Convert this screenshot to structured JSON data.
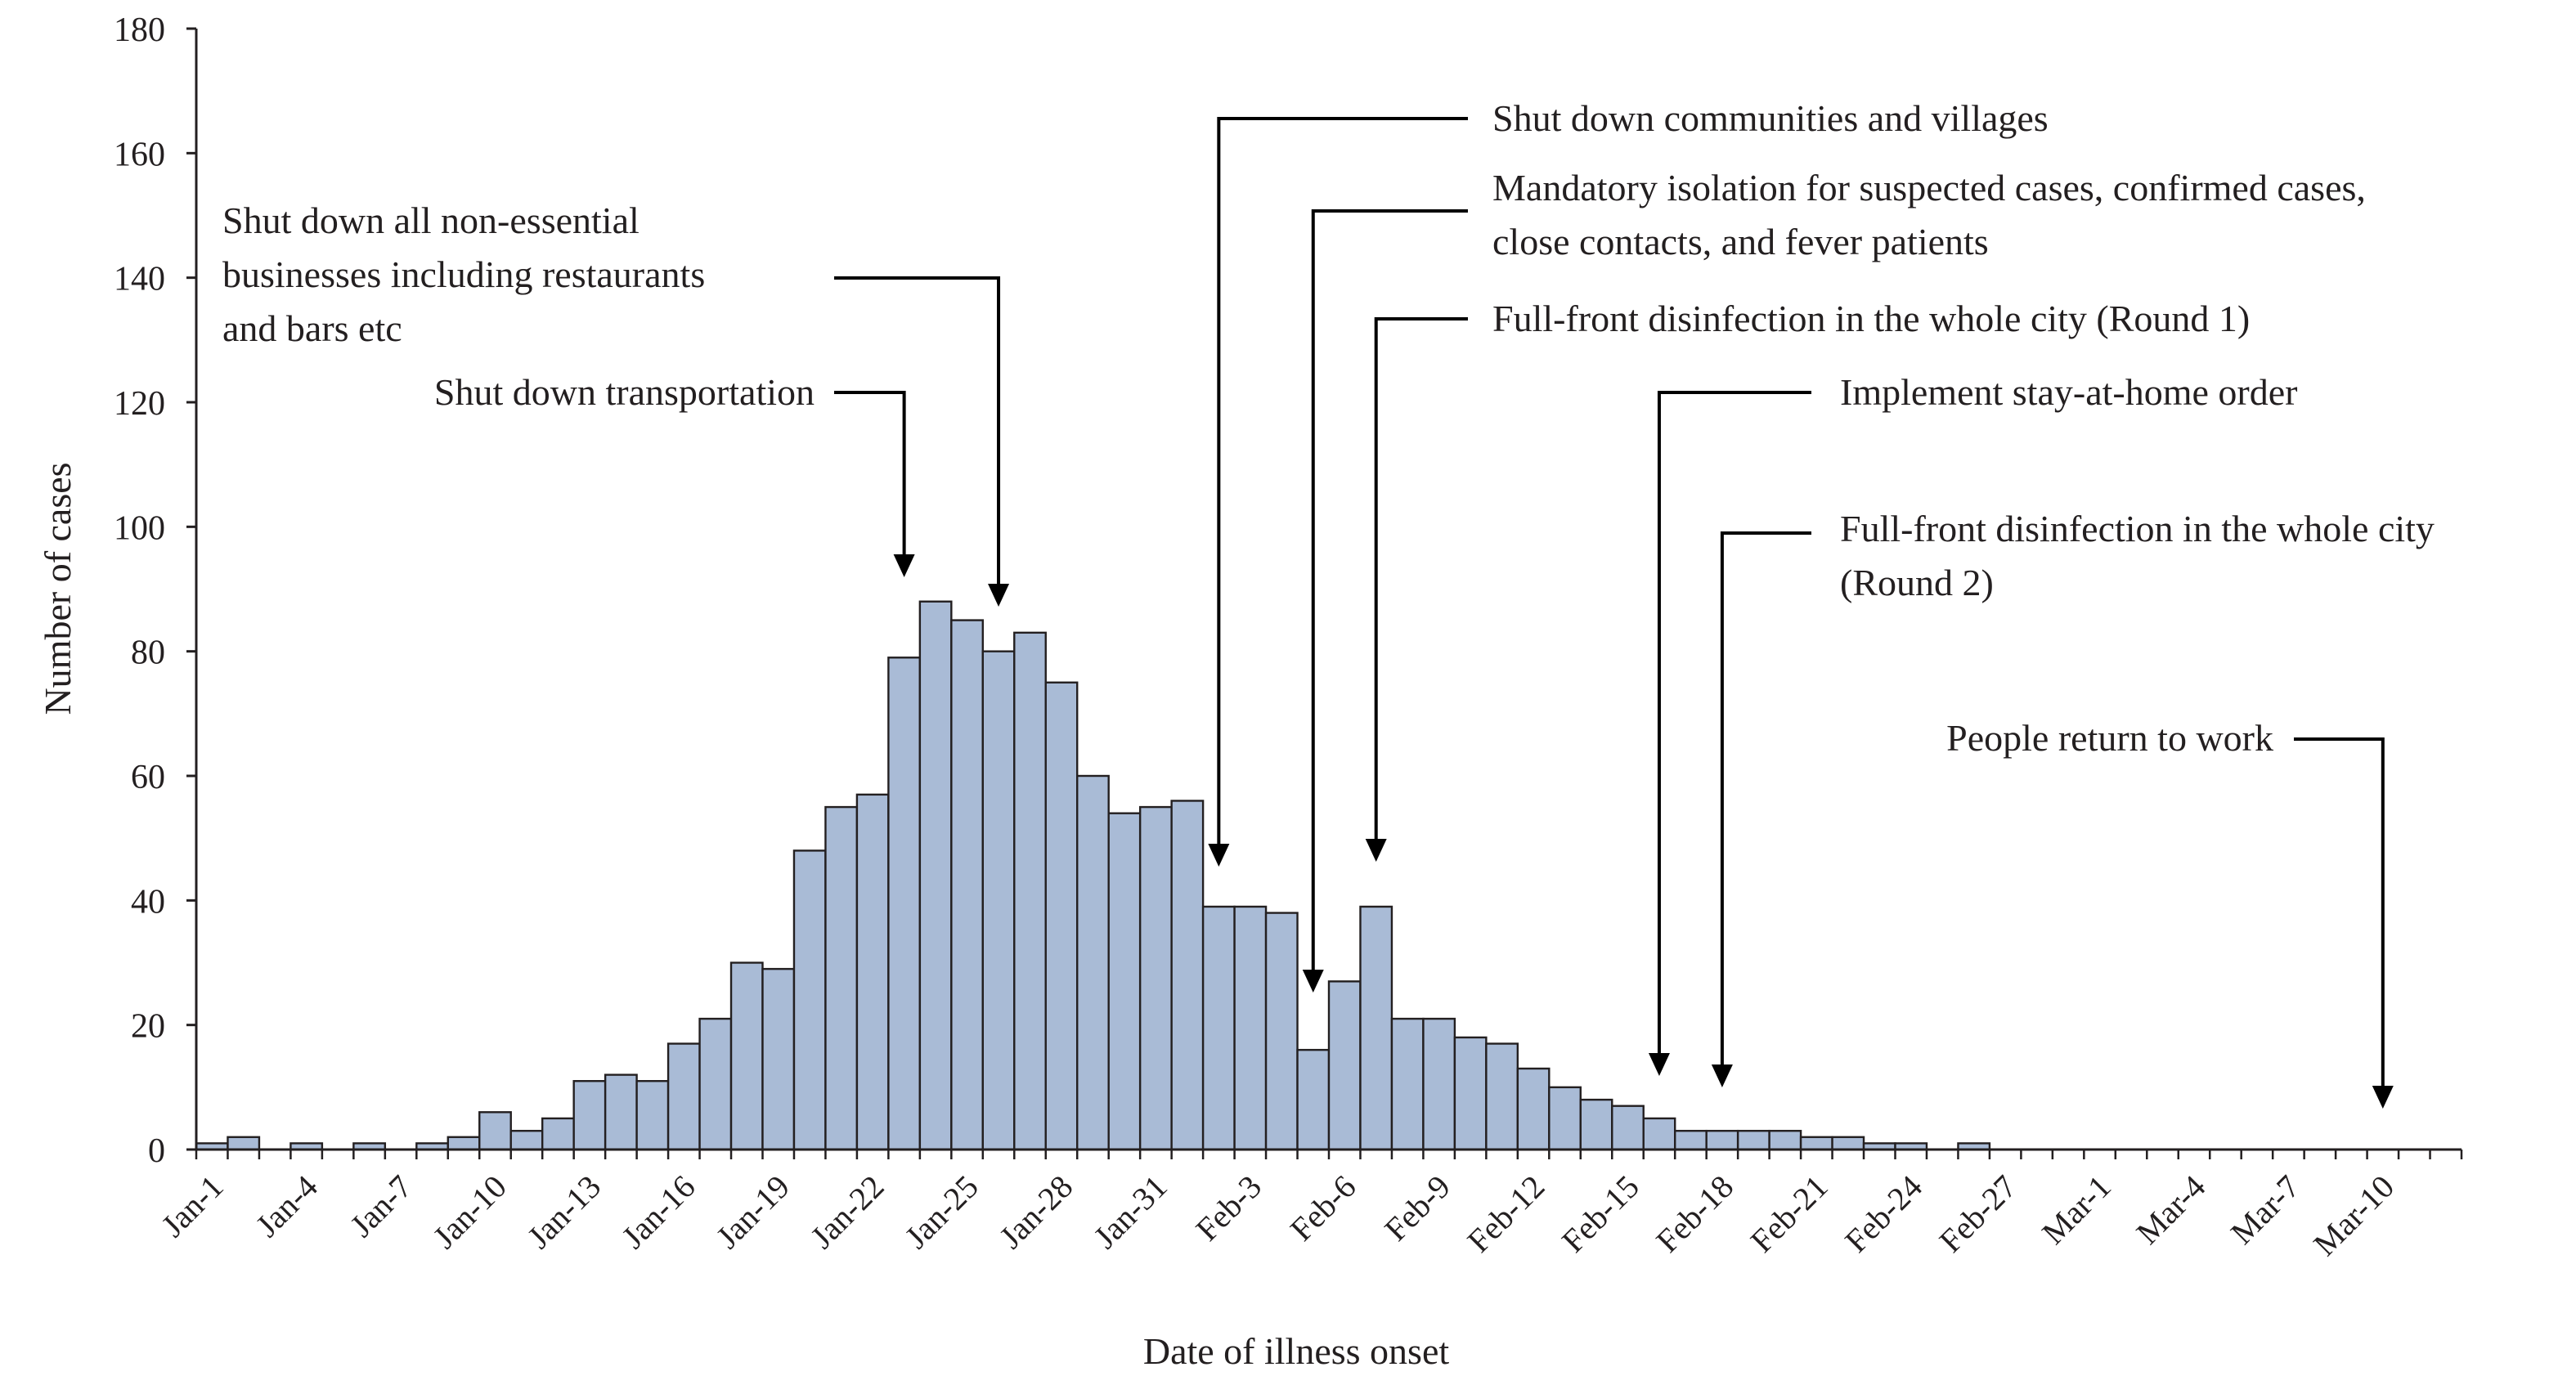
{
  "chart_data": {
    "type": "bar",
    "title": "",
    "xlabel": "Date of illness onset",
    "ylabel": "Number of cases",
    "ylim": [
      0,
      180
    ],
    "yticks": [
      0,
      20,
      40,
      60,
      80,
      100,
      120,
      140,
      160,
      180
    ],
    "grid": false,
    "legend": "none",
    "colors": {
      "bar_fill": "#a9bbd6",
      "bar_stroke": "#231f20",
      "axis": "#231f20"
    },
    "categories": [
      "Jan-1",
      "Jan-2",
      "Jan-3",
      "Jan-4",
      "Jan-5",
      "Jan-6",
      "Jan-7",
      "Jan-8",
      "Jan-9",
      "Jan-10",
      "Jan-11",
      "Jan-12",
      "Jan-13",
      "Jan-14",
      "Jan-15",
      "Jan-16",
      "Jan-17",
      "Jan-18",
      "Jan-19",
      "Jan-20",
      "Jan-21",
      "Jan-22",
      "Jan-23",
      "Jan-24",
      "Jan-25",
      "Jan-26",
      "Jan-27",
      "Jan-28",
      "Jan-29",
      "Jan-30",
      "Jan-31",
      "Feb-1",
      "Feb-2",
      "Feb-3",
      "Feb-4",
      "Feb-5",
      "Feb-6",
      "Feb-7",
      "Feb-8",
      "Feb-9",
      "Feb-10",
      "Feb-11",
      "Feb-12",
      "Feb-13",
      "Feb-14",
      "Feb-15",
      "Feb-16",
      "Feb-17",
      "Feb-18",
      "Feb-19",
      "Feb-20",
      "Feb-21",
      "Feb-22",
      "Feb-23",
      "Feb-24",
      "Feb-25",
      "Feb-26",
      "Feb-27",
      "Feb-28",
      "Feb-29",
      "Mar-1",
      "Mar-2",
      "Mar-3",
      "Mar-4",
      "Mar-5",
      "Mar-6",
      "Mar-7",
      "Mar-8",
      "Mar-9",
      "Mar-10",
      "Mar-11",
      "Mar-12"
    ],
    "values": [
      1,
      2,
      0,
      1,
      0,
      1,
      0,
      1,
      2,
      6,
      3,
      5,
      11,
      12,
      11,
      17,
      21,
      30,
      29,
      48,
      55,
      57,
      79,
      88,
      85,
      80,
      83,
      75,
      60,
      54,
      55,
      56,
      39,
      39,
      38,
      16,
      27,
      39,
      21,
      21,
      18,
      17,
      13,
      10,
      8,
      7,
      5,
      3,
      3,
      3,
      3,
      2,
      2,
      1,
      1,
      0,
      1,
      0,
      0,
      0,
      0,
      0,
      0,
      0,
      0,
      0,
      0,
      0,
      0,
      0,
      0,
      0
    ],
    "tick_labels": [
      "Jan-1",
      "Jan-4",
      "Jan-7",
      "Jan-10",
      "Jan-13",
      "Jan-16",
      "Jan-19",
      "Jan-22",
      "Jan-25",
      "Jan-28",
      "Jan-31",
      "Feb-3",
      "Feb-6",
      "Feb-9",
      "Feb-12",
      "Feb-15",
      "Feb-18",
      "Feb-21",
      "Feb-24",
      "Feb-27",
      "Mar-1",
      "Mar-4",
      "Mar-7",
      "Mar-10"
    ],
    "annotations": [
      {
        "lines": [
          "Shut down all non-essential",
          "businesses including restaurants",
          "and bars etc"
        ],
        "date": "Jan-26"
      },
      {
        "lines": [
          "Shut down transportation"
        ],
        "date": "Jan-23"
      },
      {
        "lines": [
          "Shut down communities and villages"
        ],
        "date": "Feb-2"
      },
      {
        "lines": [
          "Mandatory isolation for suspected cases, confirmed cases,",
          "close contacts, and fever patients"
        ],
        "date": "Feb-5"
      },
      {
        "lines": [
          "Full-front disinfection in the whole city (Round 1)"
        ],
        "date": "Feb-7"
      },
      {
        "lines": [
          "Implement stay-at-home order"
        ],
        "date": "Feb-16"
      },
      {
        "lines": [
          "Full-front disinfection in the whole city",
          "(Round 2)"
        ],
        "date": "Feb-18"
      },
      {
        "lines": [
          "People return to work"
        ],
        "date": "Mar-10"
      }
    ]
  }
}
